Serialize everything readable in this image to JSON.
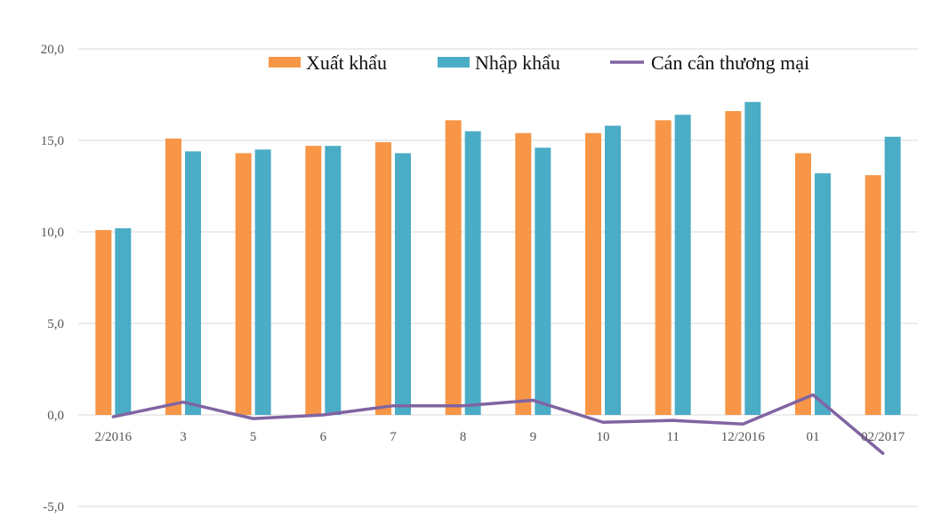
{
  "chart_data": {
    "type": "bar",
    "categories": [
      "2/2016",
      "3",
      "5",
      "6",
      "7",
      "8",
      "9",
      "10",
      "11",
      "12/2016",
      "01",
      "02/2017"
    ],
    "series": [
      {
        "name": "Xuất khẩu",
        "type": "bar",
        "color": "#f79646",
        "values": [
          10.1,
          15.1,
          14.3,
          14.7,
          14.9,
          16.1,
          15.4,
          15.4,
          16.1,
          16.6,
          14.3,
          13.1
        ]
      },
      {
        "name": "Nhập khẩu",
        "type": "bar",
        "color": "#4bacc6",
        "values": [
          10.2,
          14.4,
          14.5,
          14.7,
          14.3,
          15.5,
          14.6,
          15.8,
          16.4,
          17.1,
          13.2,
          15.2
        ]
      },
      {
        "name": "Cán cân thương mại",
        "type": "line",
        "color": "#8064a2",
        "values": [
          -0.1,
          0.7,
          -0.2,
          0.0,
          0.5,
          0.5,
          0.8,
          -0.4,
          -0.3,
          -0.5,
          1.1,
          -2.1
        ]
      }
    ],
    "y_ticks": [
      "-5,0",
      "0,0",
      "5,0",
      "10,0",
      "15,0",
      "20,0"
    ],
    "ylim": [
      -5,
      20
    ],
    "grid": true,
    "legend": "top-right"
  }
}
